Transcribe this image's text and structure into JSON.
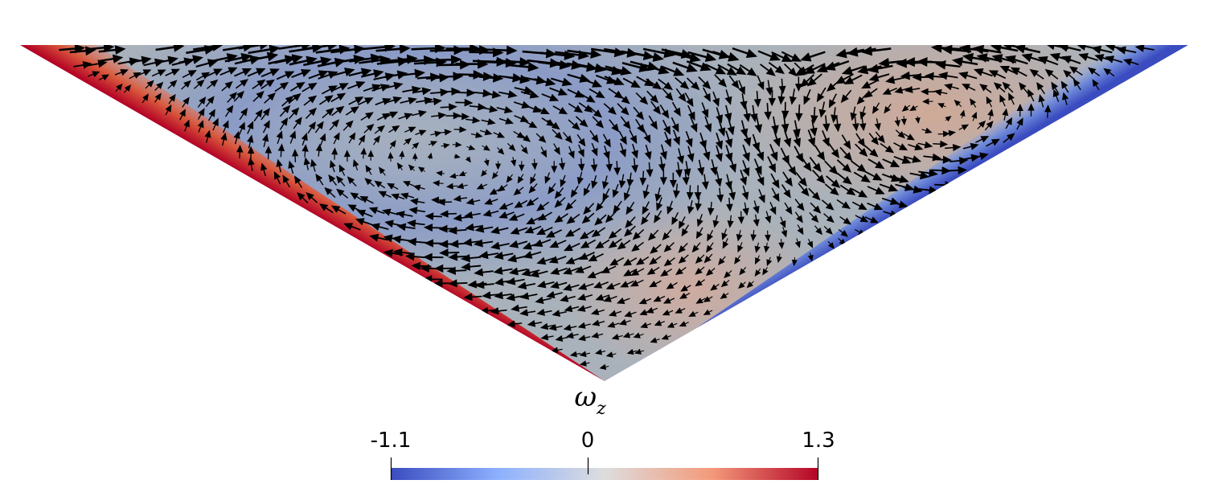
{
  "colorbar": {
    "title_symbol": "ω",
    "title_subscript": "z",
    "min_label": "-1.1",
    "mid_label": "0",
    "max_label": "1.3",
    "min": -1.1,
    "max": 1.3,
    "colormap": [
      "#3b4cc0",
      "#8db0fe",
      "#dddddd",
      "#f49a7b",
      "#b40426"
    ]
  },
  "field": {
    "background": "#a9b2bb",
    "left_vortex_color": "#8f9fc6",
    "right_vortex_color": "#cfa89a",
    "left_wall_color": "#c0392b",
    "right_wall_color": "#3b4cc0",
    "arrow_color": "#000000"
  }
}
